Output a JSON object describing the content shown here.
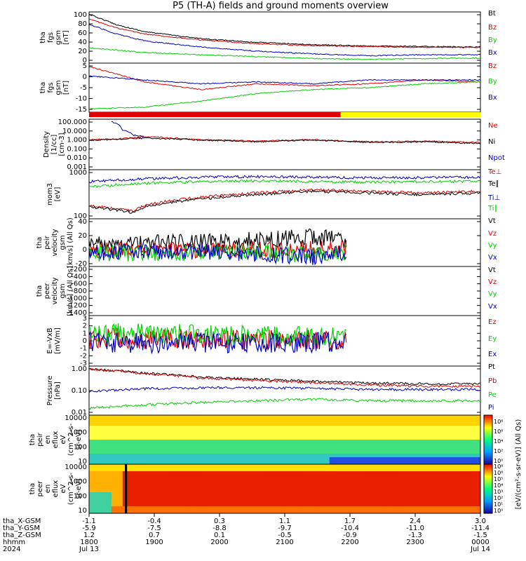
{
  "title": "P5 (TH-A) fields and ground moments overview",
  "colors": {
    "black": "#000000",
    "red": "#e00000",
    "green": "#00d000",
    "blue": "#0000c0",
    "yellow": "#ffff00"
  },
  "chart_data": [
    {
      "type": "line",
      "panel": "fgs_gsm_mag",
      "ylabel": [
        "tha",
        "fgs",
        "gsm",
        "[nT]"
      ],
      "yticks": [
        "100",
        "80",
        "60",
        "40",
        "20",
        "0"
      ],
      "ylim": [
        -5,
        100
      ],
      "series": [
        {
          "name": "Bt",
          "color": "black",
          "points": [
            [
              0,
              98
            ],
            [
              0.5,
              75
            ],
            [
              1,
              60
            ],
            [
              2,
              45
            ],
            [
              3,
              37
            ],
            [
              4,
              32
            ],
            [
              5,
              29
            ],
            [
              6,
              28
            ],
            [
              7,
              27
            ]
          ]
        },
        {
          "name": "Bz",
          "color": "red",
          "points": [
            [
              0,
              88
            ],
            [
              0.5,
              68
            ],
            [
              1,
              55
            ],
            [
              2,
              42
            ],
            [
              3,
              34
            ],
            [
              4,
              30
            ],
            [
              5,
              28
            ],
            [
              6,
              26
            ],
            [
              7,
              26
            ]
          ]
        },
        {
          "name": "By",
          "color": "green",
          "points": [
            [
              0,
              25
            ],
            [
              1,
              15
            ],
            [
              2,
              10
            ],
            [
              3,
              6
            ],
            [
              4,
              2
            ],
            [
              5,
              0
            ],
            [
              6,
              2
            ],
            [
              7,
              3
            ]
          ]
        },
        {
          "name": "Bx",
          "color": "blue",
          "points": [
            [
              0,
              76
            ],
            [
              0.5,
              55
            ],
            [
              1,
              40
            ],
            [
              2,
              27
            ],
            [
              3,
              18
            ],
            [
              4,
              12
            ],
            [
              5,
              8
            ],
            [
              6,
              10
            ],
            [
              7,
              10
            ]
          ]
        }
      ],
      "legend": [
        "Bt",
        "Bz",
        "By",
        "Bx"
      ]
    },
    {
      "type": "line",
      "panel": "fgs_gsm",
      "ylabel": [
        "tha",
        "fgs",
        "gsm",
        "[nT]"
      ],
      "yticks": [
        "5",
        "0",
        "-5",
        "-10",
        "-15"
      ],
      "ylim": [
        -17,
        7
      ],
      "series": [
        {
          "name": "Bz",
          "color": "red",
          "points": [
            [
              0,
              6
            ],
            [
              0.5,
              2
            ],
            [
              1,
              -2
            ],
            [
              2,
              -6
            ],
            [
              3,
              -3
            ],
            [
              4,
              -4
            ],
            [
              5,
              -3
            ],
            [
              6,
              -1
            ],
            [
              7,
              -2
            ]
          ]
        },
        {
          "name": "By",
          "color": "green",
          "points": [
            [
              0,
              -16
            ],
            [
              1,
              -15
            ],
            [
              2,
              -12
            ],
            [
              3,
              -8
            ],
            [
              4,
              -6
            ],
            [
              5,
              -5
            ],
            [
              6,
              -3
            ],
            [
              7,
              -2
            ]
          ]
        },
        {
          "name": "Bx",
          "color": "blue",
          "points": [
            [
              0,
              1
            ],
            [
              1,
              -1
            ],
            [
              2,
              -3
            ],
            [
              3,
              -2
            ],
            [
              4,
              -3
            ],
            [
              5,
              -1
            ],
            [
              6,
              -1
            ],
            [
              7,
              -1
            ]
          ]
        }
      ],
      "legend": [
        "Bz",
        "By",
        "Bx"
      ],
      "mode_bar": [
        {
          "from": 0,
          "to": 4.5,
          "color": "red"
        },
        {
          "from": 4.5,
          "to": 7,
          "color": "yellow"
        }
      ]
    },
    {
      "type": "line",
      "panel": "density",
      "scale": "log",
      "ylabel": [
        "Density",
        "[1/cc]",
        "[cm-3]"
      ],
      "yticks": [
        "100.000",
        "10.000",
        "1.000",
        "0.100",
        "0.010",
        "0.001"
      ],
      "ylim": [
        0.001,
        100
      ],
      "series": [
        {
          "name": "Ne",
          "color": "red",
          "points": [
            [
              0,
              1
            ],
            [
              0.5,
              1.2
            ],
            [
              1,
              2
            ],
            [
              2,
              1
            ],
            [
              3,
              0.7
            ],
            [
              4,
              1
            ],
            [
              5,
              0.6
            ],
            [
              6,
              0.7
            ],
            [
              7,
              0.5
            ]
          ]
        },
        {
          "name": "Ni",
          "color": "black",
          "points": [
            [
              0,
              0.9
            ],
            [
              0.5,
              1.1
            ],
            [
              1,
              1.5
            ],
            [
              2,
              0.9
            ],
            [
              3,
              0.6
            ],
            [
              4,
              0.9
            ],
            [
              5,
              0.5
            ],
            [
              6,
              0.6
            ],
            [
              7,
              0.4
            ]
          ]
        },
        {
          "name": "Npot",
          "color": "blue",
          "points": [
            [
              0.4,
              80
            ],
            [
              0.6,
              10
            ],
            [
              0.8,
              3
            ],
            [
              1,
              2
            ]
          ]
        }
      ],
      "legend": [
        "Ne",
        "Ni",
        "Npot"
      ]
    },
    {
      "type": "line",
      "panel": "temperature",
      "scale": "log",
      "ylabel": [
        "mom3",
        "[eV]"
      ],
      "yticks": [
        "1000",
        "100"
      ],
      "ylim": [
        30,
        6000
      ],
      "series": [
        {
          "name": "Te⊥",
          "color": "red",
          "points": [
            [
              0,
              120
            ],
            [
              0.8,
              60
            ],
            [
              1,
              120
            ],
            [
              2,
              300
            ],
            [
              3,
              500
            ],
            [
              4,
              700
            ],
            [
              5,
              600
            ],
            [
              6,
              500
            ],
            [
              7,
              600
            ]
          ]
        },
        {
          "name": "Te∥",
          "color": "black",
          "points": [
            [
              0,
              100
            ],
            [
              0.8,
              50
            ],
            [
              1,
              100
            ],
            [
              2,
              250
            ],
            [
              3,
              400
            ],
            [
              4,
              600
            ],
            [
              5,
              500
            ],
            [
              6,
              400
            ],
            [
              7,
              500
            ]
          ]
        },
        {
          "name": "Ti⊥",
          "color": "blue",
          "points": [
            [
              0,
              1800
            ],
            [
              1,
              2500
            ],
            [
              2,
              3000
            ],
            [
              3,
              3200
            ],
            [
              4,
              3000
            ],
            [
              5,
              2800
            ],
            [
              6,
              2900
            ],
            [
              7,
              3000
            ]
          ]
        },
        {
          "name": "Ti∥",
          "color": "green",
          "points": [
            [
              0,
              1000
            ],
            [
              1,
              1500
            ],
            [
              2,
              1800
            ],
            [
              3,
              2000
            ],
            [
              4,
              1800
            ],
            [
              5,
              1700
            ],
            [
              6,
              1800
            ],
            [
              7,
              1900
            ]
          ]
        }
      ],
      "legend": [
        "Te⊥",
        "Te∥",
        "Ti⊥",
        "Ti∥"
      ]
    },
    {
      "type": "line",
      "panel": "peir_velocity",
      "ylabel": [
        "tha",
        "peir",
        "velocity",
        "gsm",
        "[km/s] (All Qs)"
      ],
      "yticks": [
        "40",
        "20",
        "0",
        "-20"
      ],
      "ylim": [
        -25,
        55
      ],
      "series": [
        {
          "name": "Vt",
          "color": "black",
          "points": [
            [
              0,
              12
            ],
            [
              1,
              14
            ],
            [
              2,
              16
            ],
            [
              3,
              20
            ],
            [
              4,
              25
            ],
            [
              4.6,
              20
            ]
          ]
        },
        {
          "name": "Vz",
          "color": "red",
          "points": [
            [
              0,
              0
            ],
            [
              1,
              2
            ],
            [
              2,
              2
            ],
            [
              3,
              3
            ],
            [
              4,
              3
            ],
            [
              4.6,
              5
            ]
          ]
        },
        {
          "name": "Vy",
          "color": "green",
          "points": [
            [
              0,
              -5
            ],
            [
              1,
              -3
            ],
            [
              2,
              -2
            ],
            [
              3,
              -4
            ],
            [
              4,
              -6
            ],
            [
              4.6,
              -2
            ]
          ]
        },
        {
          "name": "Vx",
          "color": "blue",
          "points": [
            [
              0,
              -2
            ],
            [
              1,
              -1
            ],
            [
              2,
              0
            ],
            [
              3,
              -5
            ],
            [
              4,
              -10
            ],
            [
              4.6,
              -3
            ]
          ]
        }
      ],
      "legend": [
        "Vt",
        "Vz",
        "Vy",
        "Vx"
      ]
    },
    {
      "type": "line",
      "panel": "peer_velocity",
      "ylabel": [
        "tha",
        "peer",
        "velocity",
        "gsm",
        "[km/s] (All Qs)"
      ],
      "yticks": [
        "-200",
        "-400",
        "-600",
        "-800",
        "-1000",
        "-1200",
        "-1400"
      ],
      "ylim": [
        -1450,
        -100
      ],
      "series": [],
      "legend": [
        "Vt",
        "Vz",
        "Vy",
        "Vx"
      ]
    },
    {
      "type": "line",
      "panel": "e_field",
      "ylabel": [
        "E=-VxB",
        "[mV/m]"
      ],
      "yticks": [
        "3",
        "2",
        "1",
        "0",
        "-1",
        "-2",
        "-3"
      ],
      "ylim": [
        -3,
        3
      ],
      "series": [
        {
          "name": "Ez",
          "color": "red",
          "points": [
            [
              0,
              0.3
            ],
            [
              2,
              0.2
            ],
            [
              4,
              0.2
            ],
            [
              4.6,
              0.2
            ]
          ]
        },
        {
          "name": "Ey",
          "color": "green",
          "points": [
            [
              0,
              1
            ],
            [
              2,
              0.8
            ],
            [
              4,
              0.5
            ],
            [
              4.6,
              0.6
            ]
          ]
        },
        {
          "name": "Ex",
          "color": "blue",
          "points": [
            [
              0,
              -0.2
            ],
            [
              2,
              -0.3
            ],
            [
              4,
              -0.2
            ],
            [
              4.6,
              -0.2
            ]
          ]
        }
      ],
      "legend": [
        "Ez",
        "Ey",
        "Ex"
      ]
    },
    {
      "type": "line",
      "panel": "pressure",
      "scale": "log",
      "ylabel": [
        "Pressure",
        "[nPa]"
      ],
      "yticks": [
        "1.00",
        "0.10",
        "0.01"
      ],
      "ylim": [
        0.01,
        3
      ],
      "series": [
        {
          "name": "Pt",
          "color": "black",
          "points": [
            [
              0,
              2.5
            ],
            [
              1,
              1.5
            ],
            [
              2,
              0.9
            ],
            [
              3,
              0.7
            ],
            [
              4,
              0.55
            ],
            [
              5,
              0.45
            ],
            [
              6,
              0.4
            ],
            [
              7,
              0.4
            ]
          ]
        },
        {
          "name": "Pb",
          "color": "red",
          "points": [
            [
              0,
              2.4
            ],
            [
              1,
              1.4
            ],
            [
              2,
              0.8
            ],
            [
              3,
              0.6
            ],
            [
              4,
              0.45
            ],
            [
              5,
              0.35
            ],
            [
              6,
              0.3
            ],
            [
              7,
              0.3
            ]
          ]
        },
        {
          "name": "Pe",
          "color": "green",
          "points": [
            [
              0,
              0.02
            ],
            [
              1,
              0.03
            ],
            [
              2,
              0.04
            ],
            [
              3,
              0.05
            ],
            [
              4,
              0.06
            ],
            [
              5,
              0.05
            ],
            [
              6,
              0.05
            ],
            [
              7,
              0.05
            ]
          ]
        },
        {
          "name": "Pi",
          "color": "blue",
          "points": [
            [
              0,
              0.15
            ],
            [
              1,
              0.22
            ],
            [
              2,
              0.25
            ],
            [
              3,
              0.25
            ],
            [
              4,
              0.23
            ],
            [
              5,
              0.2
            ],
            [
              6,
              0.2
            ],
            [
              7,
              0.2
            ]
          ]
        }
      ],
      "legend": [
        "Pt",
        "Pb",
        "Pe",
        "Pi"
      ]
    },
    {
      "type": "heatmap",
      "panel": "peir_spectrogram",
      "ylabel": [
        "tha",
        "peir",
        "en",
        "eflux",
        "eV",
        "(cm^2-s-",
        "sr-eV)"
      ],
      "yticks": [
        "10000",
        "1000",
        "100",
        "10"
      ]
    },
    {
      "type": "heatmap",
      "panel": "peer_spectrogram",
      "ylabel": [
        "tha",
        "peer",
        "en",
        "eflux",
        "eV",
        "(cm^2-s-",
        "sr-eV)"
      ],
      "yticks": [
        "10000",
        "1000",
        "100",
        "10"
      ]
    }
  ],
  "colorbar": {
    "label": "[eV/(cm²-s-sr-eV)] (All Qs)",
    "ticks": [
      "10⁸",
      "10⁶",
      "10⁴",
      "10²",
      "10⁰"
    ],
    "ticks2": [
      "10⁸",
      "10⁶",
      "10⁵",
      "10⁴",
      "10³",
      "10²",
      "10¹",
      "10⁰"
    ]
  },
  "xaxis": {
    "row_labels": [
      "tha_X-GSM",
      "tha_Y-GSM",
      "tha_Z-GSM",
      "hhmm",
      "2024"
    ],
    "columns": [
      {
        "x": [
          "-1.1",
          "-5.9",
          "1.2",
          "1800",
          "Jul 13"
        ]
      },
      {
        "x": [
          "-0.4",
          "-7.5",
          "0.7",
          "1900",
          ""
        ]
      },
      {
        "x": [
          "0.3",
          "-8.8",
          "0.1",
          "2000",
          ""
        ]
      },
      {
        "x": [
          "1.1",
          "-9.7",
          "-0.5",
          "2100",
          ""
        ]
      },
      {
        "x": [
          "1.7",
          "-10.4",
          "-0.9",
          "2200",
          ""
        ]
      },
      {
        "x": [
          "2.4",
          "-11.0",
          "-1.3",
          "2300",
          ""
        ]
      },
      {
        "x": [
          "3.0",
          "-11.4",
          "-1.5",
          "0000",
          "Jul 14"
        ]
      }
    ]
  }
}
